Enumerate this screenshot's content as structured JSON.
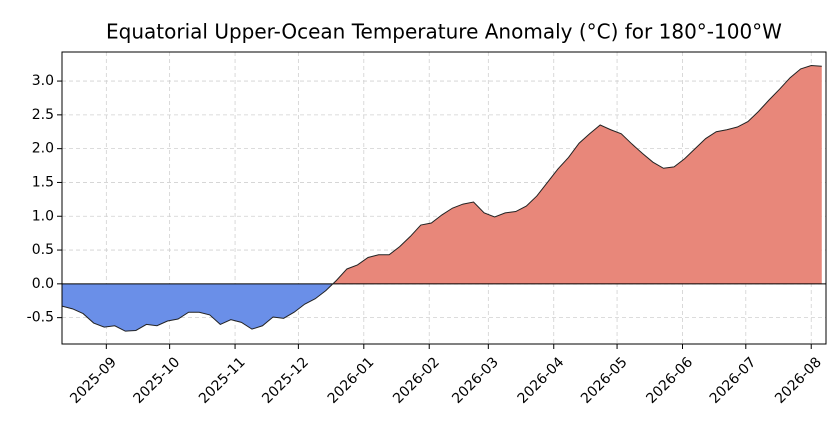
{
  "chart_data": {
    "type": "area",
    "title": "Equatorial Upper-Ocean Temperature Anomaly (°C) for 180°-100°W",
    "x": [
      -21,
      -16,
      -11,
      -6,
      -1,
      4,
      9,
      14,
      19,
      24,
      29,
      34,
      39,
      44,
      49,
      54,
      59,
      64,
      69,
      74,
      79,
      84,
      89,
      94,
      99,
      104,
      109,
      114,
      119,
      124,
      129,
      134,
      139,
      144,
      149,
      154,
      159,
      164,
      169,
      174,
      179,
      184,
      189,
      194,
      199,
      204,
      209,
      214,
      219,
      224,
      229,
      234,
      239,
      244,
      249,
      254,
      259,
      264,
      269,
      274,
      279,
      284,
      289,
      294,
      299,
      304,
      309,
      314,
      319,
      324,
      329,
      334,
      339
    ],
    "values": [
      -0.33,
      -0.37,
      -0.44,
      -0.58,
      -0.64,
      -0.62,
      -0.7,
      -0.69,
      -0.6,
      -0.62,
      -0.55,
      -0.52,
      -0.42,
      -0.42,
      -0.46,
      -0.6,
      -0.53,
      -0.57,
      -0.67,
      -0.62,
      -0.49,
      -0.51,
      -0.42,
      -0.3,
      -0.22,
      -0.1,
      0.05,
      0.22,
      0.28,
      0.39,
      0.43,
      0.43,
      0.55,
      0.7,
      0.87,
      0.9,
      1.02,
      1.12,
      1.18,
      1.21,
      1.05,
      0.99,
      1.05,
      1.07,
      1.15,
      1.3,
      1.5,
      1.7,
      1.87,
      2.08,
      2.22,
      2.35,
      2.28,
      2.22,
      2.07,
      1.93,
      1.8,
      1.71,
      1.73,
      1.85,
      2.0,
      2.15,
      2.25,
      2.28,
      2.32,
      2.4,
      2.55,
      2.72,
      2.88,
      3.05,
      3.18,
      3.23,
      3.22
    ],
    "xlim": [
      -21,
      341
    ],
    "xticks": [
      {
        "value": 0,
        "label": "2025-09"
      },
      {
        "value": 30,
        "label": "2025-10"
      },
      {
        "value": 61,
        "label": "2025-11"
      },
      {
        "value": 91,
        "label": "2025-12"
      },
      {
        "value": 122,
        "label": "2026-01"
      },
      {
        "value": 153,
        "label": "2026-02"
      },
      {
        "value": 181,
        "label": "2026-03"
      },
      {
        "value": 212,
        "label": "2026-04"
      },
      {
        "value": 242,
        "label": "2026-05"
      },
      {
        "value": 273,
        "label": "2026-06"
      },
      {
        "value": 303,
        "label": "2026-07"
      },
      {
        "value": 334,
        "label": "2026-08"
      }
    ],
    "ylim": [
      -0.89,
      3.43
    ],
    "yticks": [
      -0.5,
      {
        "value": 0,
        "label": "0.0"
      },
      0.5,
      {
        "value": 1,
        "label": "1.0"
      },
      1.5,
      {
        "value": 2,
        "label": "2.0"
      },
      2.5,
      {
        "value": 3,
        "label": "3.0"
      }
    ],
    "grid": true,
    "positive_color": "#e8877a",
    "negative_color": "#6a8fe8",
    "line_color": "#222222"
  }
}
